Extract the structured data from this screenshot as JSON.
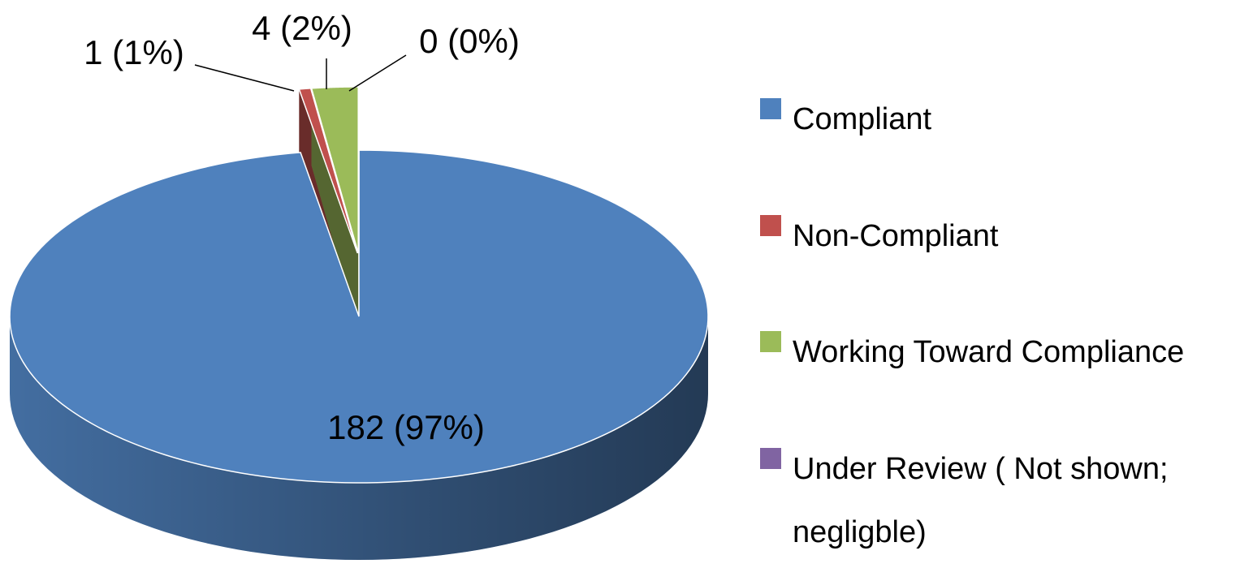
{
  "chart_data": {
    "type": "pie",
    "categories": [
      "Compliant",
      "Non-Compliant",
      "Working Toward Compliance",
      "Under Review ( Not shown; negligble)"
    ],
    "values": [
      182,
      1,
      4,
      0
    ],
    "value_labels": [
      "182 (97%)",
      "1 (1%)",
      "4 (2%)",
      "0 (0%)"
    ],
    "colors": [
      "#4f81bd",
      "#c0504d",
      "#9bbb59",
      "#8064a2"
    ],
    "legend": "right"
  }
}
